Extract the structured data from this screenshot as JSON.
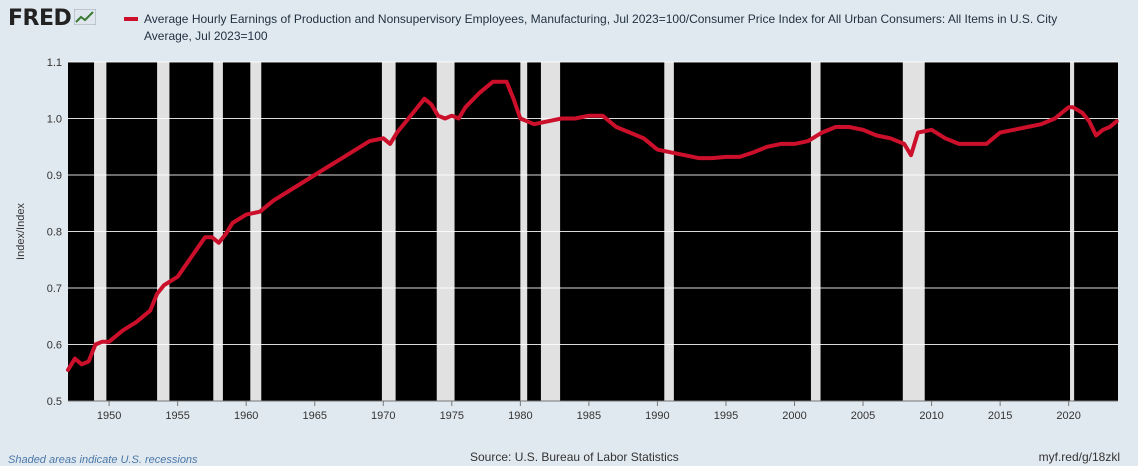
{
  "header": {
    "logo_text": "FRED",
    "logo_icon": "chart-line-icon",
    "legend_label": "Average Hourly Earnings of Production and Nonsupervisory Employees, Manufacturing, Jul 2023=100/Consumer Price Index for All Urban Consumers: All Items in U.S. City Average, Jul 2023=100"
  },
  "footer": {
    "recession_note": "Shaded areas indicate U.S. recessions",
    "source": "Source: U.S. Bureau of Labor Statistics",
    "url": "myf.red/g/18zkl"
  },
  "colors": {
    "series": "#cc0f2a",
    "plot_background": "#000000",
    "recession_band": "#e1e1e1",
    "page_background": "#e1e9f0"
  },
  "chart_data": {
    "type": "line",
    "title": "",
    "xlabel": "",
    "ylabel": "Index/Index",
    "xlim": [
      1947.0,
      2023.6
    ],
    "ylim": [
      0.5,
      1.1
    ],
    "y_ticks": [
      0.5,
      0.6,
      0.7,
      0.8,
      0.9,
      1.0,
      1.1
    ],
    "x_ticks": [
      1950,
      1955,
      1960,
      1965,
      1970,
      1975,
      1980,
      1985,
      1990,
      1995,
      2000,
      2005,
      2010,
      2015,
      2020
    ],
    "grid": true,
    "recessions": [
      [
        1948.9,
        1949.8
      ],
      [
        1953.5,
        1954.4
      ],
      [
        1957.6,
        1958.3
      ],
      [
        1960.3,
        1961.1
      ],
      [
        1969.9,
        1970.9
      ],
      [
        1973.9,
        1975.2
      ],
      [
        1980.0,
        1980.5
      ],
      [
        1981.5,
        1982.9
      ],
      [
        1990.5,
        1991.2
      ],
      [
        2001.2,
        2001.9
      ],
      [
        2007.9,
        2009.5
      ],
      [
        2020.1,
        2020.4
      ]
    ],
    "series": [
      {
        "x": [
          1947.0,
          1947.5,
          1948.0,
          1948.5,
          1949.0,
          1949.5,
          1950.0,
          1951.0,
          1952.0,
          1953.0,
          1953.5,
          1954.0,
          1955.0,
          1956.0,
          1957.0,
          1957.5,
          1958.0,
          1958.5,
          1959.0,
          1960.0,
          1961.0,
          1962.0,
          1963.0,
          1964.0,
          1965.0,
          1966.0,
          1967.0,
          1968.0,
          1969.0,
          1970.0,
          1970.5,
          1971.0,
          1972.0,
          1973.0,
          1973.5,
          1974.0,
          1974.5,
          1975.0,
          1975.5,
          1976.0,
          1977.0,
          1978.0,
          1979.0,
          1979.5,
          1980.0,
          1980.5,
          1981.0,
          1982.0,
          1983.0,
          1984.0,
          1985.0,
          1986.0,
          1987.0,
          1988.0,
          1989.0,
          1990.0,
          1991.0,
          1992.0,
          1993.0,
          1994.0,
          1995.0,
          1996.0,
          1997.0,
          1998.0,
          1999.0,
          2000.0,
          2001.0,
          2002.0,
          2003.0,
          2004.0,
          2005.0,
          2006.0,
          2007.0,
          2008.0,
          2008.5,
          2009.0,
          2010.0,
          2011.0,
          2012.0,
          2013.0,
          2014.0,
          2015.0,
          2016.0,
          2017.0,
          2018.0,
          2019.0,
          2020.0,
          2020.3,
          2021.0,
          2021.5,
          2022.0,
          2022.5,
          2023.0,
          2023.5
        ],
        "values": [
          0.555,
          0.575,
          0.565,
          0.57,
          0.6,
          0.605,
          0.605,
          0.625,
          0.64,
          0.66,
          0.69,
          0.705,
          0.72,
          0.755,
          0.79,
          0.79,
          0.78,
          0.795,
          0.815,
          0.83,
          0.835,
          0.855,
          0.87,
          0.885,
          0.9,
          0.915,
          0.93,
          0.945,
          0.96,
          0.965,
          0.955,
          0.975,
          1.005,
          1.035,
          1.025,
          1.005,
          1.0,
          1.005,
          1.0,
          1.02,
          1.045,
          1.065,
          1.065,
          1.035,
          1.0,
          0.995,
          0.99,
          0.995,
          1.0,
          1.0,
          1.005,
          1.005,
          0.985,
          0.975,
          0.965,
          0.945,
          0.94,
          0.935,
          0.93,
          0.93,
          0.932,
          0.932,
          0.94,
          0.95,
          0.955,
          0.955,
          0.96,
          0.975,
          0.985,
          0.985,
          0.98,
          0.97,
          0.965,
          0.955,
          0.935,
          0.975,
          0.98,
          0.965,
          0.955,
          0.955,
          0.955,
          0.975,
          0.98,
          0.985,
          0.99,
          1.0,
          1.02,
          1.02,
          1.01,
          0.995,
          0.97,
          0.98,
          0.985,
          0.995
        ]
      }
    ]
  }
}
